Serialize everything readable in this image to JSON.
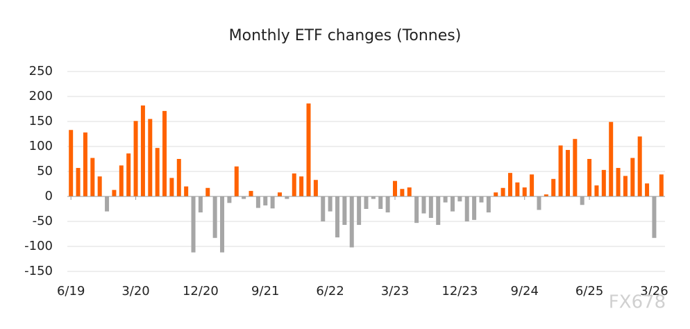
{
  "chart_data": {
    "type": "bar",
    "title": "Monthly ETF changes (Tonnes)",
    "categories": [
      "6/19",
      null,
      null,
      null,
      null,
      null,
      null,
      null,
      null,
      "3/20",
      null,
      null,
      null,
      null,
      null,
      null,
      null,
      null,
      "12/20",
      null,
      null,
      null,
      null,
      null,
      null,
      null,
      null,
      "9/21",
      null,
      null,
      null,
      null,
      null,
      null,
      null,
      null,
      "6/22",
      null,
      null,
      null,
      null,
      null,
      null,
      null,
      null,
      "3/23",
      null,
      null,
      null,
      null,
      null,
      null,
      null,
      null,
      "12/23",
      null,
      null,
      null,
      null,
      null,
      null,
      null,
      null,
      "9/24",
      null,
      null,
      null,
      null,
      null,
      null,
      null,
      null,
      "6/25",
      null,
      null,
      null,
      null,
      null,
      null,
      null,
      null,
      "3/26",
      null
    ],
    "values": [
      133,
      57,
      128,
      77,
      40,
      -30,
      13,
      62,
      86,
      151,
      182,
      155,
      97,
      171,
      37,
      75,
      20,
      -112,
      -32,
      17,
      -83,
      -112,
      -13,
      60,
      -5,
      11,
      -23,
      -18,
      -24,
      8,
      -5,
      46,
      40,
      186,
      33,
      -50,
      -30,
      -82,
      -57,
      -102,
      -57,
      -25,
      -5,
      -25,
      -32,
      31,
      15,
      18,
      -53,
      -34,
      -43,
      -57,
      -12,
      -30,
      -10,
      -50,
      -47,
      -12,
      -32,
      8,
      17,
      47,
      28,
      18,
      44,
      -27,
      4,
      35,
      102,
      93,
      115,
      -17,
      75,
      22,
      53,
      149,
      57,
      41,
      77,
      120,
      26,
      -83,
      44
    ],
    "color": "#ff6200",
    "negative_color": "#a6a6a6",
    "ylim": [
      -150,
      250
    ],
    "yticks": [
      -150,
      -100,
      -50,
      0,
      50,
      100,
      150,
      200,
      250
    ],
    "grid": true,
    "watermark": "FX678"
  }
}
